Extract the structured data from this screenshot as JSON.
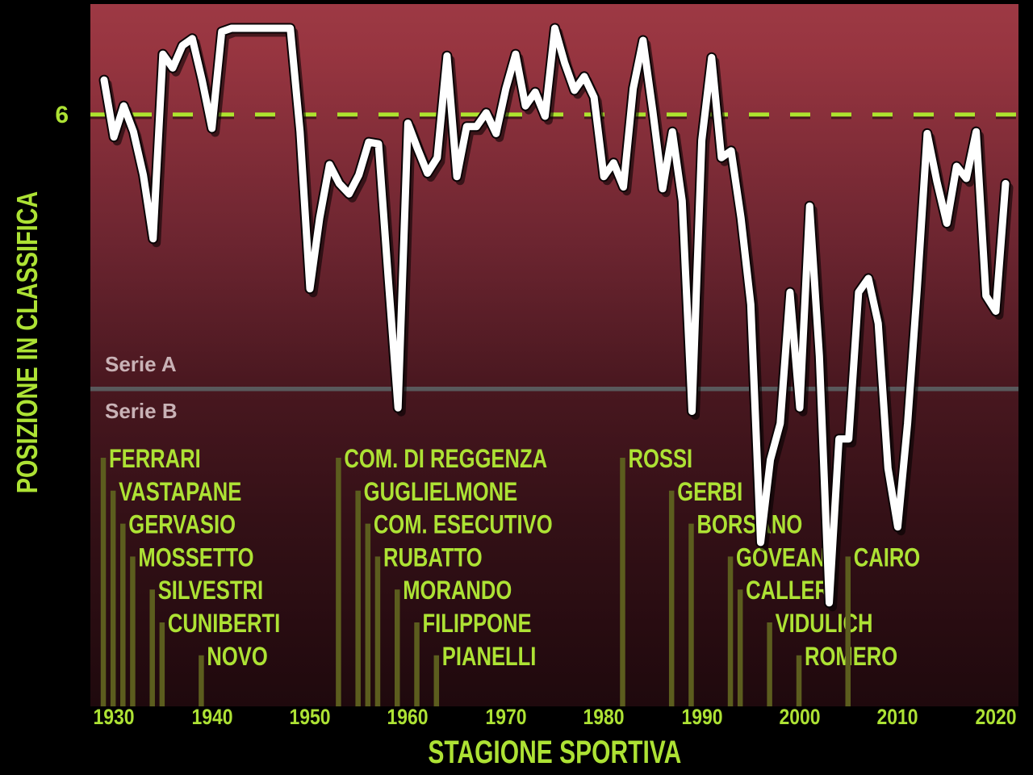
{
  "page": {
    "background": "#000000"
  },
  "y_axis": {
    "label": "POSIZIONE IN CLASSIFICA",
    "tick": "6"
  },
  "x_axis": {
    "label": "STAGIONE SPORTIVA",
    "ticks": [
      "1930",
      "1940",
      "1950",
      "1960",
      "1970",
      "1980",
      "1990",
      "2000",
      "2010",
      "2020"
    ]
  },
  "league_bands": {
    "serie_a": "Serie A",
    "serie_b": "Serie B"
  },
  "presidents": [
    {
      "name": "FERRARI",
      "start_season": 1929,
      "row": 1
    },
    {
      "name": "VASTAPANE",
      "start_season": 1930,
      "row": 2
    },
    {
      "name": "GERVASIO",
      "start_season": 1931,
      "row": 3
    },
    {
      "name": "MOSSETTO",
      "start_season": 1932,
      "row": 4
    },
    {
      "name": "SILVESTRI",
      "start_season": 1934,
      "row": 5
    },
    {
      "name": "CUNIBERTI",
      "start_season": 1935,
      "row": 6
    },
    {
      "name": "NOVO",
      "start_season": 1939,
      "row": 7
    },
    {
      "name": "COM. DI REGGENZA",
      "start_season": 1953,
      "row": 1
    },
    {
      "name": "GUGLIELMONE",
      "start_season": 1955,
      "row": 2
    },
    {
      "name": "COM. ESECUTIVO",
      "start_season": 1956,
      "row": 3
    },
    {
      "name": "RUBATTO",
      "start_season": 1957,
      "row": 4
    },
    {
      "name": "MORANDO",
      "start_season": 1959,
      "row": 5
    },
    {
      "name": "FILIPPONE",
      "start_season": 1961,
      "row": 6
    },
    {
      "name": "PIANELLI",
      "start_season": 1963,
      "row": 7
    },
    {
      "name": "ROSSI",
      "start_season": 1982,
      "row": 1
    },
    {
      "name": "GERBI",
      "start_season": 1987,
      "row": 2
    },
    {
      "name": "BORSANO",
      "start_season": 1989,
      "row": 3
    },
    {
      "name": "GOVEANI",
      "start_season": 1993,
      "row": 4
    },
    {
      "name": "CALLERI",
      "start_season": 1994,
      "row": 5
    },
    {
      "name": "VIDULICH",
      "start_season": 1997,
      "row": 6
    },
    {
      "name": "ROMERO",
      "start_season": 2000,
      "row": 7
    },
    {
      "name": "CAIRO",
      "start_season": 2005,
      "row": 4
    }
  ],
  "chart_data": {
    "type": "line",
    "title": "",
    "xlabel": "STAGIONE SPORTIVA",
    "ylabel": "POSIZIONE IN CLASSIFICA",
    "x_season_start_years": [
      1929,
      1930,
      1931,
      1932,
      1933,
      1934,
      1935,
      1936,
      1937,
      1938,
      1939,
      1940,
      1941,
      1942,
      1943,
      1944,
      1945,
      1946,
      1947,
      1948,
      1949,
      1950,
      1951,
      1952,
      1953,
      1954,
      1955,
      1956,
      1957,
      1958,
      1959,
      1960,
      1961,
      1962,
      1963,
      1964,
      1965,
      1966,
      1967,
      1968,
      1969,
      1970,
      1971,
      1972,
      1973,
      1974,
      1975,
      1976,
      1977,
      1978,
      1979,
      1980,
      1981,
      1982,
      1983,
      1984,
      1985,
      1986,
      1987,
      1988,
      1989,
      1990,
      1991,
      1992,
      1993,
      1994,
      1995,
      1996,
      1997,
      1998,
      1999,
      2000,
      2001,
      2002,
      2003,
      2004,
      2005,
      2006,
      2007,
      2008,
      2009,
      2010,
      2011,
      2012,
      2013,
      2014,
      2015,
      2016,
      2017,
      2018,
      2019,
      2020,
      2021
    ],
    "positions": [
      4.0,
      7.3,
      5.5,
      7.0,
      9.5,
      13.2,
      2.5,
      3.3,
      2.0,
      1.6,
      4.0,
      6.8,
      1.2,
      1.0,
      1.0,
      1.0,
      1.0,
      1.0,
      1.0,
      1.0,
      7.0,
      16.1,
      12.0,
      8.9,
      10.0,
      10.6,
      9.5,
      7.6,
      7.7,
      15.5,
      23.0,
      6.5,
      8.0,
      9.4,
      8.5,
      2.6,
      9.6,
      6.7,
      6.7,
      5.9,
      7.1,
      4.5,
      2.5,
      5.5,
      4.7,
      6.1,
      1.0,
      3.0,
      4.6,
      3.8,
      5.0,
      9.6,
      8.8,
      10.2,
      4.5,
      1.7,
      5.8,
      10.3,
      7.0,
      11.0,
      23.2,
      7.5,
      2.7,
      8.5,
      8.1,
      12.0,
      17.0,
      30.8,
      26.0,
      23.9,
      16.3,
      23.0,
      11.3,
      20.0,
      34.3,
      24.8,
      24.8,
      16.3,
      15.5,
      18.1,
      26.5,
      29.9,
      23.9,
      16.0,
      7.1,
      9.9,
      12.3,
      9.0,
      9.7,
      7.0,
      16.5,
      17.4,
      10.0
    ],
    "position_scale_note": "1 = primo posto; values greater than ~22 are Serie B seasons plotted below the Serie A / Serie B divider (about 22 + Serie B rank)",
    "xlim": [
      1929,
      2021
    ],
    "ylim": [
      1,
      40.3
    ],
    "reference_lines": {
      "dashed_position": 6,
      "serie_divider_position": 21.9
    },
    "legend": "none",
    "grid": "off",
    "colors": {
      "line": "#ffffff",
      "dashed_line": "#aee52f",
      "accent_text": "#ade234",
      "president_tick_line": "#5c5d1e",
      "serie_label_text": "#c9b2b6",
      "divider_line": "#59595c",
      "bg_top": "#9d3944",
      "bg_bottom": "#1f090d"
    }
  }
}
